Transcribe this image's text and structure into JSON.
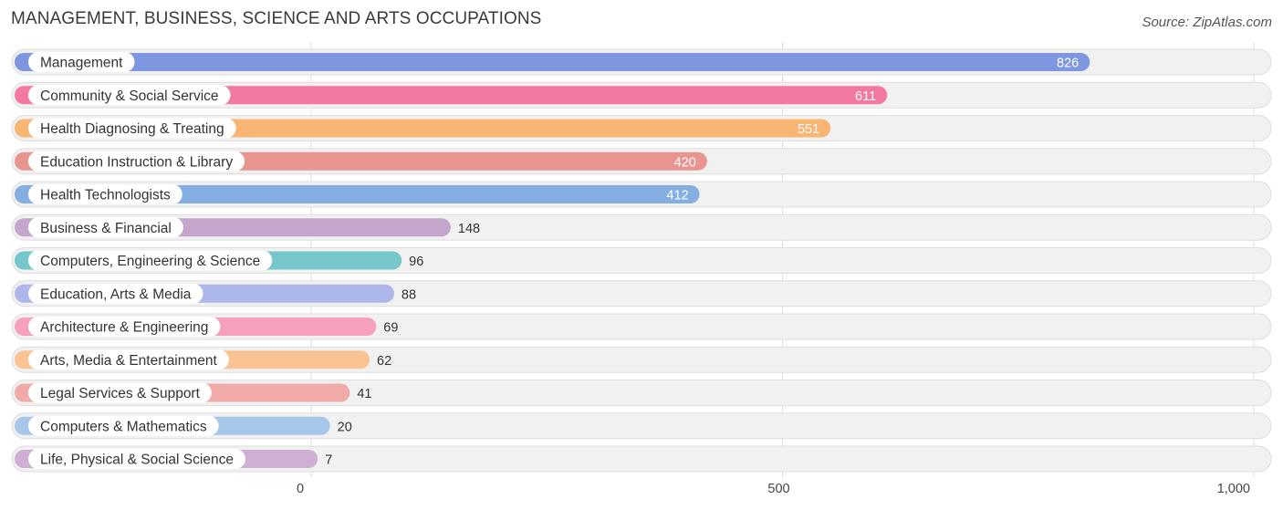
{
  "title": "MANAGEMENT, BUSINESS, SCIENCE AND ARTS OCCUPATIONS",
  "source": "Source: ZipAtlas.com",
  "chart_data": {
    "type": "bar",
    "orientation": "horizontal",
    "categories": [
      "Management",
      "Community & Social Service",
      "Health Diagnosing & Treating",
      "Education Instruction & Library",
      "Health Technologists",
      "Business & Financial",
      "Computers, Engineering & Science",
      "Education, Arts & Media",
      "Architecture & Engineering",
      "Arts, Media & Entertainment",
      "Legal Services & Support",
      "Computers & Mathematics",
      "Life, Physical & Social Science"
    ],
    "values": [
      826,
      611,
      551,
      420,
      412,
      148,
      96,
      88,
      69,
      62,
      41,
      20,
      7
    ],
    "value_labels": [
      "826",
      "611",
      "551",
      "420",
      "412",
      "148",
      "96",
      "88",
      "69",
      "62",
      "41",
      "20",
      "7"
    ],
    "colors": [
      "#7f97e0",
      "#f27aa0",
      "#f9b574",
      "#e8948f",
      "#85aee3",
      "#c4a5cb",
      "#76c7cc",
      "#adb7ea",
      "#f6a0bb",
      "#f9c393",
      "#f0aaa8",
      "#a6c6ea",
      "#cdb0d2"
    ],
    "xlim": [
      0,
      1000
    ],
    "xticks": [
      0,
      500,
      1000
    ],
    "xtick_labels": [
      "0",
      "500",
      "1,000"
    ],
    "grid": true
  }
}
